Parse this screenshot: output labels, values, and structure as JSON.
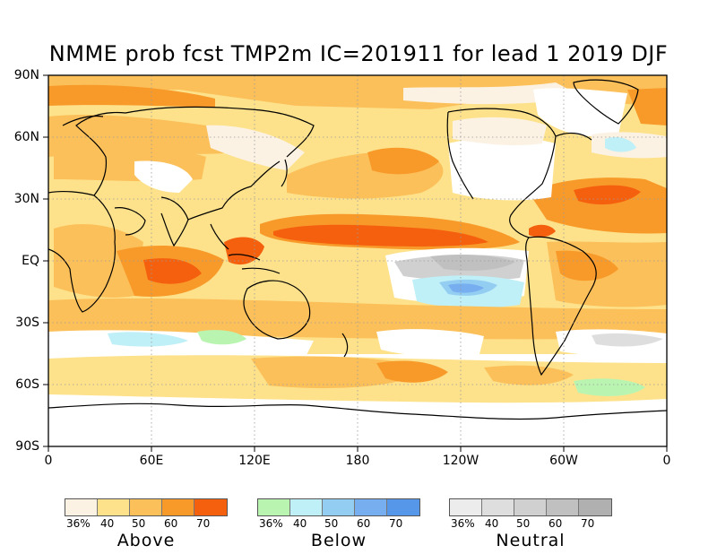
{
  "title": "NMME prob fcst TMP2m IC=201911 for lead 1 2019 DJF",
  "lat_labels": [
    "90N",
    "60N",
    "30N",
    "EQ",
    "30S",
    "60S",
    "90S"
  ],
  "lon_labels": [
    "0",
    "60E",
    "120E",
    "180",
    "120W",
    "60W",
    "0"
  ],
  "legends": [
    {
      "name": "Above",
      "ticks": [
        "36%",
        "40",
        "50",
        "60",
        "70"
      ],
      "colors": [
        "#fcf2e3",
        "#fde28b",
        "#fcc05a",
        "#f89a2a",
        "#f5600e"
      ]
    },
    {
      "name": "Below",
      "ticks": [
        "36%",
        "40",
        "50",
        "60",
        "70"
      ],
      "colors": [
        "#b9f5b1",
        "#bfeff7",
        "#93cdf2",
        "#76aef0",
        "#5797ea"
      ]
    },
    {
      "name": "Neutral",
      "ticks": [
        "36%",
        "40",
        "50",
        "60",
        "70"
      ],
      "colors": [
        "#ececec",
        "#dedede",
        "#d0d0d0",
        "#c0c0c0",
        "#b0b0b0"
      ]
    }
  ]
}
